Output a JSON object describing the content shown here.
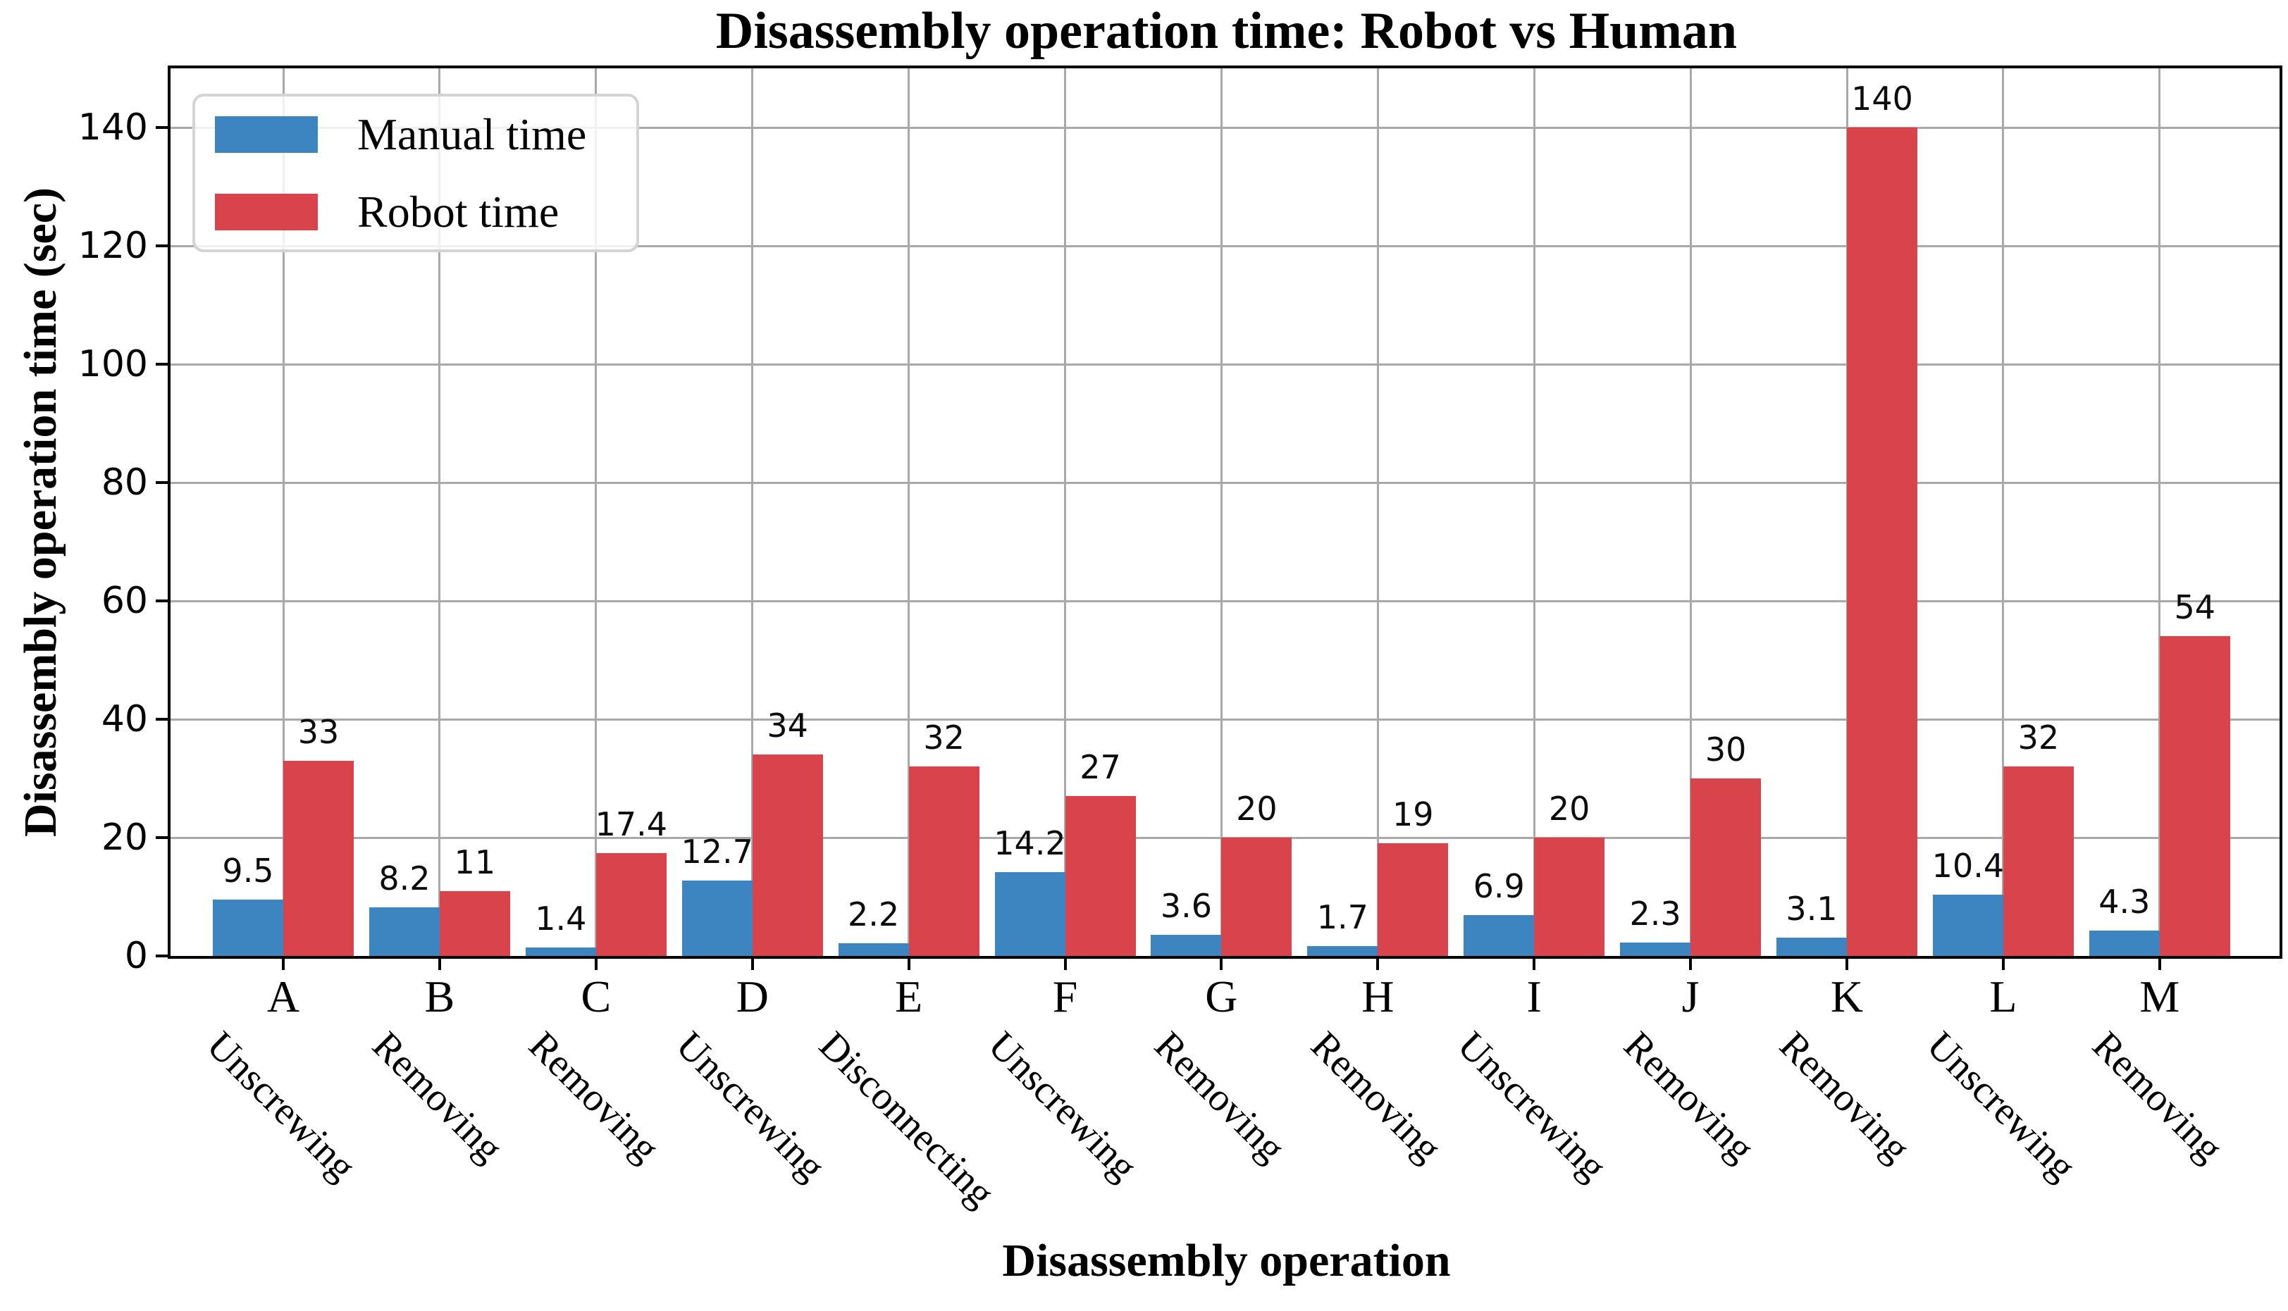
{
  "title": "Disassembly operation time: Robot vs Human",
  "axes": {
    "x_label": "Disassembly operation",
    "y_label": "Disassembly operation time (sec)",
    "y_ticks": [
      0,
      20,
      40,
      60,
      80,
      100,
      120,
      140
    ]
  },
  "legend": {
    "items": [
      {
        "label": "Manual time",
        "color": "#3d85c1"
      },
      {
        "label": "Robot time",
        "color": "#d9444c"
      }
    ]
  },
  "colors": {
    "manual_bar": "#3d85c1",
    "robot_bar": "#d9444c",
    "grid": "#a9a9a9",
    "axis": "#000000"
  },
  "chart_data": {
    "type": "bar",
    "title": "Disassembly operation time: Robot vs Human",
    "xlabel": "Disassembly operation",
    "ylabel": "Disassembly operation time (sec)",
    "categories": [
      "A",
      "B",
      "C",
      "D",
      "E",
      "F",
      "G",
      "H",
      "I",
      "J",
      "K",
      "L",
      "M"
    ],
    "operations": [
      "Unscrewing",
      "Removing",
      "Removing",
      "Unscrewing",
      "Disconnecting",
      "Unscrewing",
      "Removing",
      "Removing",
      "Unscrewing",
      "Removing",
      "Removing",
      "Unscrewing",
      "Removing"
    ],
    "series": [
      {
        "name": "Manual time",
        "color": "#3d85c1",
        "values": [
          9.5,
          8.2,
          1.4,
          12.7,
          2.2,
          14.2,
          3.6,
          1.7,
          6.9,
          2.3,
          3.1,
          10.4,
          4.3
        ]
      },
      {
        "name": "Robot time",
        "color": "#d9444c",
        "values": [
          33,
          11,
          17.4,
          34,
          32,
          27,
          20,
          19,
          20,
          30,
          140,
          32,
          54
        ]
      }
    ],
    "ylim": [
      0,
      150
    ],
    "y_ticks": [
      0,
      20,
      40,
      60,
      80,
      100,
      120,
      140
    ],
    "grid": true,
    "bar_value_labels": true,
    "legend_position": "upper left"
  }
}
